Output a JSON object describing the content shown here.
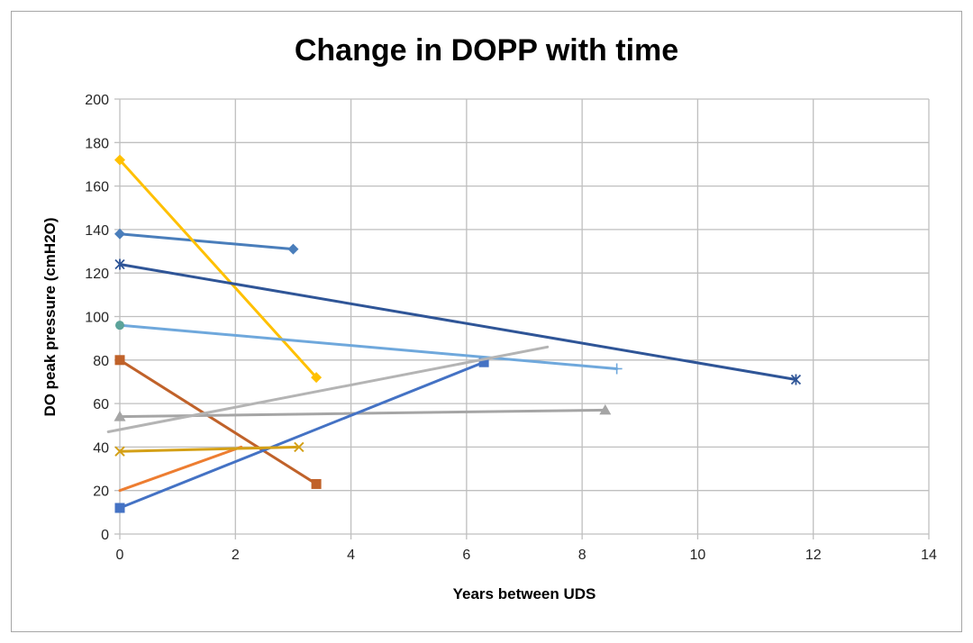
{
  "chart_data": {
    "type": "line",
    "title": "Change in DOPP with time",
    "xlabel": "Years between UDS",
    "ylabel": "DO peak pressure  (cmH2O)",
    "xlim": [
      0,
      14
    ],
    "ylim": [
      0,
      200
    ],
    "x_ticks": [
      "0",
      "2",
      "4",
      "6",
      "8",
      "10",
      "12",
      "14"
    ],
    "y_ticks": [
      "0",
      "20",
      "40",
      "60",
      "80",
      "100",
      "120",
      "140",
      "160",
      "180",
      "200"
    ],
    "grid": true,
    "legend": "none",
    "series": [
      {
        "color": "#4a7ebb",
        "marker": "diamond",
        "points": [
          [
            0,
            138
          ],
          [
            3.0,
            131
          ]
        ]
      },
      {
        "color": "#c0622a",
        "marker": "square",
        "points": [
          [
            0,
            80
          ],
          [
            3.4,
            23
          ]
        ]
      },
      {
        "color": "#a5a5a5",
        "marker": "triangle",
        "points": [
          [
            0,
            54
          ],
          [
            8.4,
            57
          ]
        ]
      },
      {
        "color": "#ffc000",
        "marker": "diamond",
        "points": [
          [
            0,
            172
          ],
          [
            3.4,
            72
          ]
        ]
      },
      {
        "color": "#4472c4",
        "marker": "square",
        "points": [
          [
            0,
            12
          ],
          [
            6.3,
            79
          ]
        ]
      },
      {
        "color": "#2f5597",
        "marker": "star",
        "points": [
          [
            0,
            124
          ],
          [
            11.7,
            71
          ]
        ]
      },
      {
        "color": "#6fa8dc",
        "marker": "circle-plus",
        "points": [
          [
            0,
            96
          ],
          [
            8.6,
            76
          ]
        ]
      },
      {
        "color": "#ed7d31",
        "marker": "none",
        "points": [
          [
            0,
            20
          ],
          [
            2.1,
            40
          ]
        ]
      },
      {
        "color": "#b4b4b4",
        "marker": "none",
        "points": [
          [
            -0.2,
            47
          ],
          [
            7.4,
            86
          ]
        ]
      },
      {
        "color": "#d4a017",
        "marker": "x",
        "points": [
          [
            0,
            38
          ],
          [
            3.1,
            40
          ]
        ]
      }
    ]
  }
}
